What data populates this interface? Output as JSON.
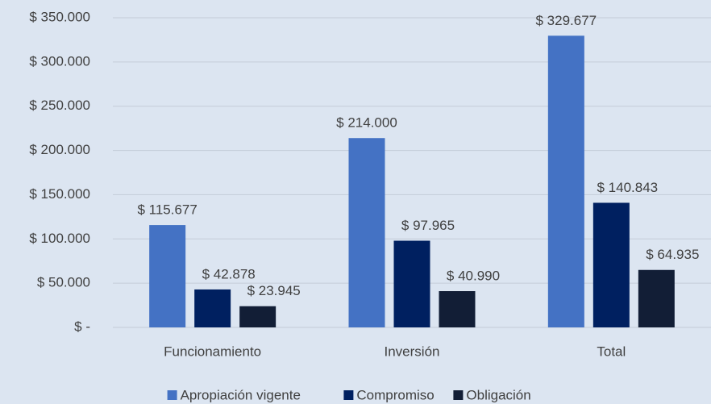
{
  "chart_data": {
    "type": "bar",
    "categories": [
      "Funcionamiento",
      "Inversión",
      "Total"
    ],
    "series": [
      {
        "name": "Apropiación vigente",
        "color": "#4472c4",
        "values": [
          115677,
          214000,
          329677
        ],
        "value_labels": [
          "$ 115.677",
          "$ 214.000",
          "$ 329.677"
        ]
      },
      {
        "name": "Compromiso",
        "color": "#002060",
        "values": [
          42878,
          97965,
          140843
        ],
        "value_labels": [
          "$ 42.878",
          "$ 97.965",
          "$ 140.843"
        ]
      },
      {
        "name": "Obligación",
        "color": "#121e36",
        "values": [
          23945,
          40990,
          64935
        ],
        "value_labels": [
          "$ 23.945",
          "$ 40.990",
          "$ 64.935"
        ]
      }
    ],
    "ylim": [
      0,
      350000
    ],
    "yticks": [
      {
        "value": 0,
        "label": "$ -"
      },
      {
        "value": 50000,
        "label": "$ 50.000"
      },
      {
        "value": 100000,
        "label": "$ 100.000"
      },
      {
        "value": 150000,
        "label": "$ 150.000"
      },
      {
        "value": 200000,
        "label": "$ 200.000"
      },
      {
        "value": 250000,
        "label": "$ 250.000"
      },
      {
        "value": 300000,
        "label": "$ 300.000"
      },
      {
        "value": 350000,
        "label": "$ 350.000"
      }
    ],
    "grid": true,
    "legend": "bottom"
  }
}
